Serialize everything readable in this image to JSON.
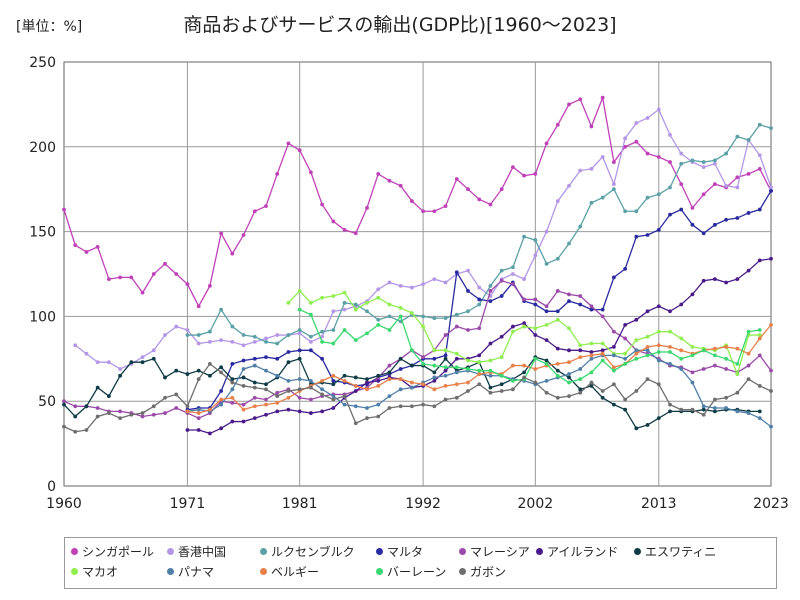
{
  "unit_label": "[単位：%]",
  "chart_data": {
    "type": "line",
    "title": "商品およびサービスの輸出(GDP比)[1960～2023]",
    "xlabel": "",
    "ylabel": "",
    "ylim": [
      0,
      250
    ],
    "xlim": [
      1960,
      2023
    ],
    "xticks": [
      1960,
      1971,
      1981,
      1992,
      2002,
      2013,
      2023
    ],
    "yticks": [
      0,
      50,
      100,
      150,
      200,
      250
    ],
    "grid": true,
    "legend_position": "bottom",
    "series": [
      {
        "name": "シンガポール",
        "color": "#c040b8",
        "start": 1960,
        "values": [
          163,
          142,
          138,
          141,
          122,
          123,
          123,
          114,
          125,
          131,
          125,
          119,
          106,
          118,
          149,
          137,
          148,
          162,
          165,
          184,
          202,
          198,
          185,
          166,
          156,
          151,
          149,
          164,
          184,
          180,
          177,
          168,
          162,
          162,
          165,
          181,
          175,
          169,
          166,
          175,
          188,
          183,
          184,
          202,
          213,
          225,
          228,
          212,
          229,
          191,
          200,
          203,
          196,
          194,
          191,
          178,
          164,
          172,
          178,
          176,
          182,
          184,
          187,
          174
        ]
      },
      {
        "name": "香港中国",
        "color": "#b496e6",
        "start": 1960,
        "values": [
          null,
          83,
          78,
          73,
          73,
          69,
          72,
          76,
          80,
          89,
          94,
          92,
          84,
          85,
          86,
          85,
          83,
          85,
          87,
          89,
          89,
          90,
          85,
          88,
          103,
          104,
          106,
          109,
          116,
          120,
          118,
          117,
          119,
          122,
          120,
          125,
          127,
          117,
          112,
          122,
          125,
          122,
          136,
          150,
          168,
          177,
          186,
          187,
          194,
          178,
          205,
          214,
          217,
          222,
          207,
          196,
          191,
          188,
          190,
          177,
          176,
          204,
          195,
          176
        ]
      },
      {
        "name": "ルクセンブルク",
        "color": "#5aa0a6",
        "start": 1960,
        "values": [
          null,
          null,
          null,
          null,
          null,
          null,
          null,
          null,
          null,
          null,
          null,
          null,
          null,
          null,
          null,
          null,
          null,
          null,
          null,
          null,
          null,
          null,
          null,
          null,
          null,
          null,
          null,
          null,
          null,
          null,
          null,
          null,
          null,
          null,
          null,
          null,
          null,
          null,
          null,
          null,
          null,
          null,
          null,
          null,
          null,
          null,
          null,
          null,
          null,
          null,
          null,
          null,
          null,
          null,
          null,
          null,
          null,
          null,
          null,
          null,
          null,
          null,
          null,
          null
        ]
      },
      {
        "name": "マルタ",
        "color": "#2a2aa0",
        "start": 1960,
        "values": [
          null,
          null,
          null,
          null,
          null,
          null,
          null,
          null,
          null,
          null,
          null,
          null,
          null,
          null,
          null,
          null,
          null,
          null,
          null,
          null,
          null,
          null,
          null,
          null,
          null,
          null,
          null,
          null,
          null,
          null,
          null,
          null,
          null,
          null,
          null,
          null,
          null,
          null,
          null,
          null,
          null,
          null,
          null,
          null,
          null,
          null,
          null,
          null,
          null,
          null,
          null,
          null,
          null,
          null,
          null,
          null,
          null,
          null,
          null,
          null,
          null,
          null,
          null,
          null
        ]
      },
      {
        "name": "マレーシア",
        "color": "#9a4aa8",
        "start": 1960,
        "values": [
          null,
          null,
          null,
          null,
          null,
          null,
          null,
          null,
          null,
          null,
          null,
          null,
          null,
          null,
          null,
          null,
          null,
          null,
          null,
          null,
          null,
          null,
          null,
          null,
          null,
          null,
          null,
          null,
          null,
          null,
          null,
          null,
          null,
          null,
          null,
          null,
          null,
          null,
          null,
          null,
          null,
          null,
          null,
          null,
          null,
          null,
          null,
          null,
          null,
          null,
          null,
          null,
          null,
          null,
          null,
          null,
          null,
          null,
          null,
          null,
          null,
          null,
          null,
          null
        ]
      },
      {
        "name": "アイルランド",
        "color": "#4b1a8a",
        "start": 1960,
        "values": [
          null,
          null,
          null,
          null,
          null,
          null,
          null,
          null,
          null,
          null,
          null,
          null,
          null,
          null,
          null,
          null,
          null,
          null,
          null,
          null,
          null,
          null,
          null,
          null,
          null,
          null,
          null,
          null,
          null,
          null,
          null,
          null,
          null,
          null,
          null,
          null,
          null,
          null,
          null,
          null,
          null,
          null,
          null,
          null,
          null,
          null,
          null,
          null,
          null,
          null,
          null,
          null,
          null,
          null,
          null,
          null,
          null,
          null,
          null,
          null,
          null,
          null,
          null,
          null
        ]
      },
      {
        "name": "エスワティニ",
        "color": "#0f3b46",
        "start": 1960,
        "values": [
          null,
          null,
          null,
          null,
          null,
          null,
          null,
          null,
          null,
          null,
          null,
          null,
          null,
          null,
          null,
          null,
          null,
          null,
          null,
          null,
          null,
          null,
          null,
          null,
          null,
          null,
          null,
          null,
          null,
          null,
          null,
          null,
          null,
          null,
          null,
          null,
          null,
          null,
          null,
          null,
          null,
          null,
          null,
          null,
          null,
          null,
          null,
          null,
          null,
          null,
          null,
          null,
          null,
          null,
          null,
          null,
          null,
          null,
          null,
          null,
          null,
          null,
          null,
          null
        ]
      },
      {
        "name": "マカオ",
        "color": "#90ee50",
        "start": 1960,
        "values": [
          null,
          null,
          null,
          null,
          null,
          null,
          null,
          null,
          null,
          null,
          null,
          null,
          null,
          null,
          null,
          null,
          null,
          null,
          null,
          null,
          null,
          null,
          null,
          null,
          null,
          null,
          null,
          null,
          null,
          null,
          null,
          null,
          null,
          null,
          null,
          null,
          null,
          null,
          null,
          null,
          null,
          null,
          null,
          null,
          null,
          null,
          null,
          null,
          null,
          null,
          null,
          null,
          null,
          null,
          null,
          null,
          null,
          null,
          null,
          null,
          null,
          null,
          null,
          null
        ]
      },
      {
        "name": "パナマ",
        "color": "#4f7fa8",
        "start": 1960,
        "values": [
          null,
          null,
          null,
          null,
          null,
          null,
          null,
          null,
          null,
          null,
          null,
          null,
          null,
          null,
          null,
          null,
          null,
          null,
          null,
          null,
          null,
          null,
          null,
          null,
          null,
          null,
          null,
          null,
          null,
          null,
          null,
          null,
          null,
          null,
          null,
          null,
          null,
          null,
          null,
          null,
          null,
          null,
          null,
          null,
          null,
          null,
          null,
          null,
          null,
          null,
          null,
          null,
          null,
          null,
          null,
          null,
          null,
          null,
          null,
          null,
          null,
          null,
          null,
          null
        ]
      },
      {
        "name": "ベルギー",
        "color": "#e8804a",
        "start": 1960,
        "values": [
          null,
          null,
          null,
          null,
          null,
          null,
          null,
          null,
          null,
          null,
          null,
          null,
          null,
          null,
          null,
          null,
          null,
          null,
          null,
          null,
          null,
          null,
          null,
          null,
          null,
          null,
          null,
          null,
          null,
          null,
          null,
          null,
          null,
          null,
          null,
          null,
          null,
          null,
          null,
          null,
          null,
          null,
          null,
          null,
          null,
          null,
          null,
          null,
          null,
          null,
          null,
          null,
          null,
          null,
          null,
          null,
          null,
          null,
          null,
          null,
          null,
          null,
          null,
          null
        ]
      },
      {
        "name": "バーレーン",
        "color": "#3ad86e",
        "start": 1960,
        "values": [
          null,
          null,
          null,
          null,
          null,
          null,
          null,
          null,
          null,
          null,
          null,
          null,
          null,
          null,
          null,
          null,
          null,
          null,
          null,
          null,
          null,
          null,
          null,
          null,
          null,
          null,
          null,
          null,
          null,
          null,
          null,
          null,
          null,
          null,
          null,
          null,
          null,
          null,
          null,
          null,
          null,
          null,
          null,
          null,
          null,
          null,
          null,
          null,
          null,
          null,
          null,
          null,
          null,
          null,
          null,
          null,
          null,
          null,
          null,
          null,
          null,
          null,
          null,
          null
        ]
      },
      {
        "name": "ガボン",
        "color": "#6e6e6e",
        "start": 1960,
        "values": [
          null,
          null,
          null,
          null,
          null,
          null,
          null,
          null,
          null,
          null,
          null,
          null,
          null,
          null,
          null,
          null,
          null,
          null,
          null,
          null,
          null,
          null,
          null,
          null,
          null,
          null,
          null,
          null,
          null,
          null,
          null,
          null,
          null,
          null,
          null,
          null,
          null,
          null,
          null,
          null,
          null,
          null,
          null,
          null,
          null,
          null,
          null,
          null,
          null,
          null,
          null,
          null,
          null,
          null,
          null,
          null,
          null,
          null,
          null,
          null,
          null,
          null,
          null,
          null
        ]
      }
    ]
  }
}
